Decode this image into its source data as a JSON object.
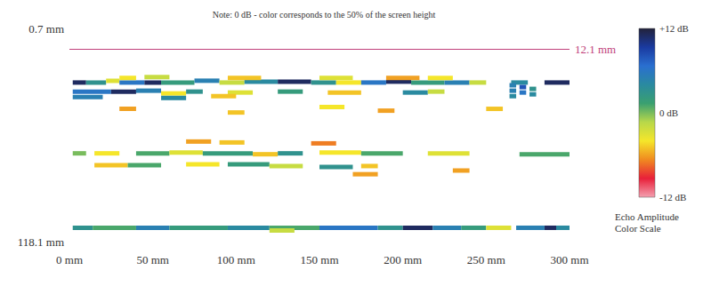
{
  "chart_data": {
    "type": "heatmap",
    "title": "Note: 0 dB - color corresponds to the 50% of the screen height",
    "xlim": [
      0,
      300
    ],
    "xticks": [
      {
        "value": 0,
        "label": "0 mm"
      },
      {
        "value": 50,
        "label": "50 mm"
      },
      {
        "value": 100,
        "label": "100 mm"
      },
      {
        "value": 150,
        "label": "150 mm"
      },
      {
        "value": 200,
        "label": "200 mm"
      },
      {
        "value": 250,
        "label": "250 mm"
      },
      {
        "value": 300,
        "label": "300 mm"
      }
    ],
    "ylim": [
      0.7,
      118.1
    ],
    "yticks": [
      {
        "value": 0.7,
        "label": "0.7 mm"
      },
      {
        "value": 118.1,
        "label": "118.1 mm"
      }
    ],
    "grid": false,
    "annotations": [
      {
        "text": "12.1 mm",
        "y": 12.1,
        "color": "#c0407a"
      }
    ],
    "cells": [
      [
        2,
        14,
        110.5,
        3
      ],
      [
        14,
        40,
        110.5,
        1
      ],
      [
        40,
        60,
        110.5,
        5
      ],
      [
        60,
        95,
        110.5,
        2
      ],
      [
        95,
        120,
        110.5,
        4
      ],
      [
        120,
        150,
        110.5,
        1
      ],
      [
        150,
        185,
        110.5,
        6
      ],
      [
        185,
        200,
        110.5,
        3
      ],
      [
        200,
        218,
        110.5,
        11
      ],
      [
        218,
        235,
        110.5,
        5
      ],
      [
        235,
        250,
        110.5,
        2
      ],
      [
        250,
        265,
        110.5,
        -3
      ],
      [
        268,
        285,
        110.5,
        5
      ],
      [
        285,
        292,
        110.5,
        11
      ],
      [
        292,
        300,
        110.5,
        4
      ],
      [
        120,
        135,
        112,
        -2
      ],
      [
        2,
        10,
        30.5,
        11
      ],
      [
        10,
        22,
        30.5,
        3
      ],
      [
        22,
        30,
        29.5,
        -3
      ],
      [
        30,
        45,
        30.5,
        6
      ],
      [
        45,
        55,
        30.5,
        11
      ],
      [
        55,
        75,
        30.5,
        2
      ],
      [
        75,
        90,
        29.5,
        5
      ],
      [
        90,
        105,
        30.5,
        -2
      ],
      [
        105,
        125,
        30,
        4
      ],
      [
        125,
        145,
        30,
        11
      ],
      [
        145,
        160,
        30.5,
        3
      ],
      [
        160,
        175,
        30.5,
        -4
      ],
      [
        175,
        190,
        30.5,
        6
      ],
      [
        190,
        205,
        30,
        11
      ],
      [
        205,
        225,
        30.5,
        2
      ],
      [
        225,
        240,
        30.5,
        5
      ],
      [
        240,
        250,
        30.5,
        -2
      ],
      [
        265,
        275,
        30.5,
        4
      ],
      [
        285,
        300,
        30.5,
        11
      ],
      [
        30,
        40,
        28,
        -4
      ],
      [
        45,
        60,
        27.5,
        -2
      ],
      [
        95,
        115,
        28,
        -5
      ],
      [
        150,
        170,
        28,
        -3
      ],
      [
        190,
        210,
        28,
        -6
      ],
      [
        215,
        230,
        28,
        -4
      ],
      [
        2,
        25,
        35.5,
        6
      ],
      [
        25,
        40,
        35.5,
        11
      ],
      [
        40,
        55,
        35,
        5
      ],
      [
        55,
        70,
        36.5,
        -4
      ],
      [
        70,
        80,
        35.5,
        3
      ],
      [
        95,
        110,
        36,
        -3
      ],
      [
        125,
        140,
        35.5,
        2
      ],
      [
        155,
        175,
        36,
        -5
      ],
      [
        200,
        215,
        36,
        4
      ],
      [
        215,
        225,
        35.5,
        -2
      ],
      [
        2,
        20,
        38.5,
        5
      ],
      [
        55,
        70,
        39,
        4
      ],
      [
        85,
        100,
        38,
        -5
      ],
      [
        30,
        40,
        45,
        -6
      ],
      [
        95,
        105,
        47,
        -5
      ],
      [
        150,
        165,
        44,
        -4
      ],
      [
        185,
        195,
        46,
        -6
      ],
      [
        250,
        260,
        45,
        -5
      ],
      [
        264,
        268,
        32,
        5
      ],
      [
        264,
        268,
        35,
        5
      ],
      [
        264,
        268,
        38,
        4
      ],
      [
        270,
        274,
        33,
        8
      ],
      [
        270,
        274,
        36,
        6
      ],
      [
        276,
        280,
        34,
        3
      ],
      [
        276,
        280,
        37,
        4
      ],
      [
        70,
        85,
        63,
        -6
      ],
      [
        90,
        105,
        63.5,
        -5
      ],
      [
        145,
        160,
        64,
        -7
      ],
      [
        2,
        10,
        69.5,
        0
      ],
      [
        15,
        30,
        69.5,
        -4
      ],
      [
        40,
        60,
        69.5,
        1
      ],
      [
        60,
        80,
        69,
        -3
      ],
      [
        80,
        110,
        69.5,
        2
      ],
      [
        110,
        125,
        70,
        -5
      ],
      [
        125,
        140,
        69.5,
        3
      ],
      [
        150,
        175,
        69,
        -4
      ],
      [
        175,
        200,
        69.5,
        1
      ],
      [
        215,
        240,
        69.5,
        -3
      ],
      [
        270,
        300,
        70,
        1
      ],
      [
        15,
        35,
        76,
        -5
      ],
      [
        35,
        55,
        76,
        1
      ],
      [
        70,
        90,
        75.5,
        -4
      ],
      [
        95,
        120,
        75.5,
        2
      ],
      [
        120,
        140,
        76.5,
        -2
      ],
      [
        150,
        170,
        77,
        3
      ],
      [
        175,
        185,
        76.5,
        -5
      ],
      [
        230,
        240,
        79,
        -6
      ],
      [
        170,
        185,
        81,
        -6
      ]
    ],
    "colorbar": {
      "range": [
        -12,
        12
      ],
      "ticks": [
        {
          "value": 12,
          "label": "+12 dB"
        },
        {
          "value": 0,
          "label": "0 dB"
        },
        {
          "value": -12,
          "label": "-12 dB"
        }
      ],
      "title": "Echo Amplitude Color Scale",
      "colors": [
        "#f4a0b0",
        "#e8203a",
        "#f08a20",
        "#f5e62a",
        "#b8d84a",
        "#3aa070",
        "#2a8aa0",
        "#2a6fd0",
        "#1a3aa0",
        "#22223a"
      ]
    }
  }
}
